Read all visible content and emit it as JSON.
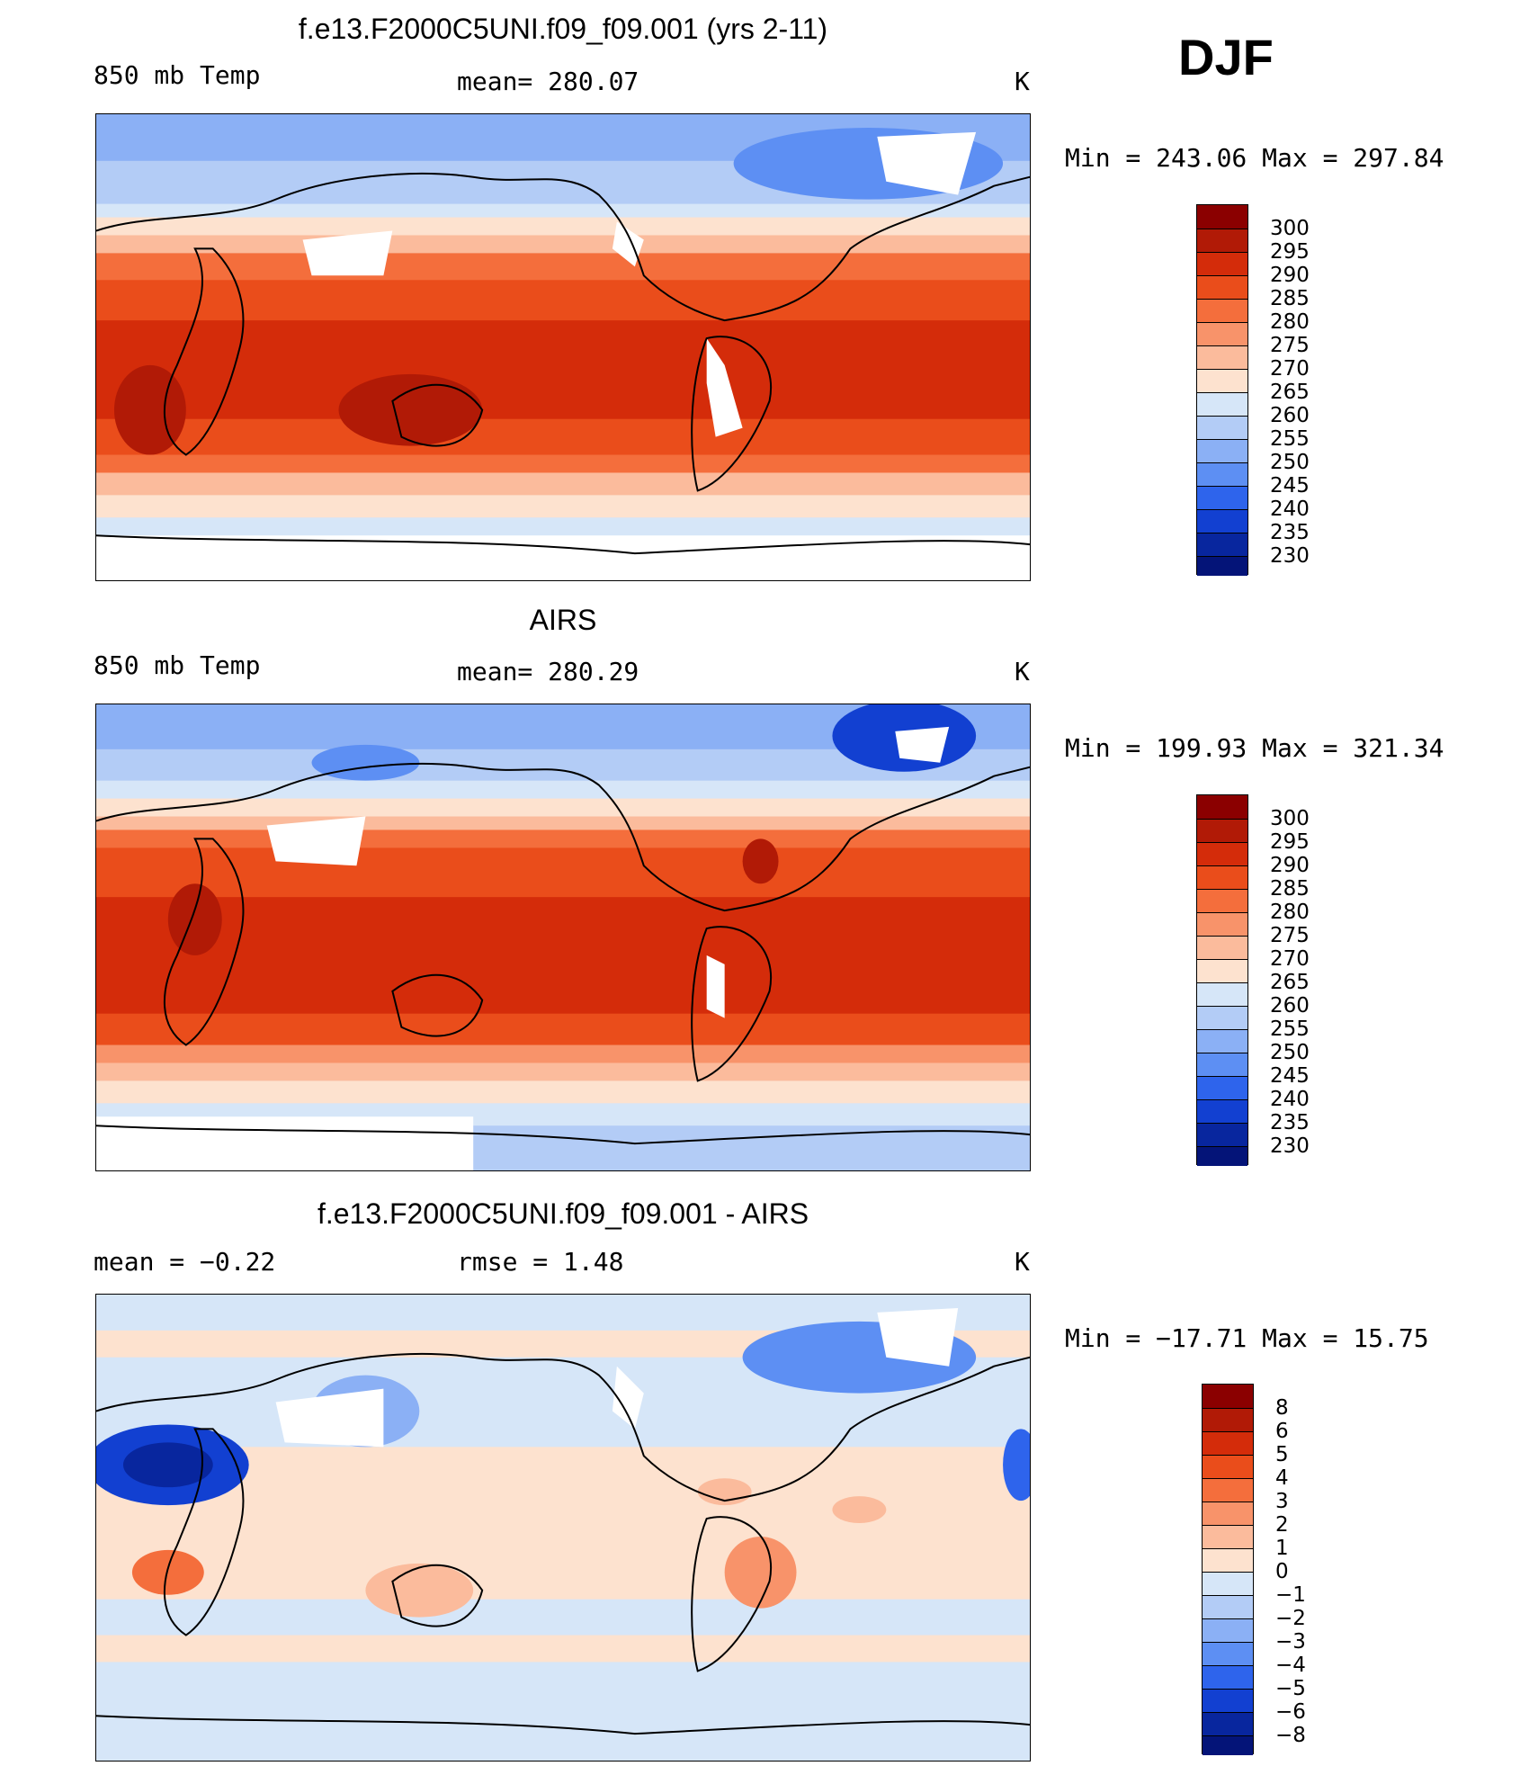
{
  "season": "DJF",
  "panels": [
    {
      "title": "f.e13.F2000C5UNI.f09_f09.001 (yrs 2-11)",
      "left_label": "850 mb Temp",
      "center_label": "mean= 280.07",
      "right_label": "K",
      "minmax": "Min  =  243.06  Max  =  297.84"
    },
    {
      "title": "AIRS",
      "left_label": "850 mb Temp",
      "center_label": "mean= 280.29",
      "right_label": "K",
      "minmax": "Min  =  199.93  Max  =  321.34"
    },
    {
      "title": "f.e13.F2000C5UNI.f09_f09.001 - AIRS",
      "left_label": "mean  =    −0.22",
      "center_label": "rmse  =     1.48",
      "right_label": "K",
      "minmax": "Min  =  −17.71  Max  =    15.75"
    }
  ],
  "colorbars": {
    "temperature": {
      "labels": [
        "300",
        "295",
        "290",
        "285",
        "280",
        "275",
        "270",
        "265",
        "260",
        "255",
        "250",
        "245",
        "240",
        "235",
        "230"
      ],
      "colors": [
        "#8b0000",
        "#b11a06",
        "#d42c0a",
        "#ea4d1b",
        "#f46e3c",
        "#f8936a",
        "#fbbb9c",
        "#fde2cf",
        "#d6e6f8",
        "#b3ccf6",
        "#8bb0f5",
        "#5d8ff3",
        "#2e64ec",
        "#1240d1",
        "#08269e",
        "#041478"
      ]
    },
    "difference": {
      "labels": [
        "8",
        "6",
        "5",
        "4",
        "3",
        "2",
        "1",
        "0",
        "−1",
        "−2",
        "−3",
        "−4",
        "−5",
        "−6",
        "−8"
      ],
      "colors": [
        "#8b0000",
        "#b11a06",
        "#d42c0a",
        "#ea4d1b",
        "#f46e3c",
        "#f8936a",
        "#fbbb9c",
        "#fde2cf",
        "#d6e6f8",
        "#b3ccf6",
        "#8bb0f5",
        "#5d8ff3",
        "#2e64ec",
        "#1240d1",
        "#08269e",
        "#041478"
      ]
    }
  }
}
